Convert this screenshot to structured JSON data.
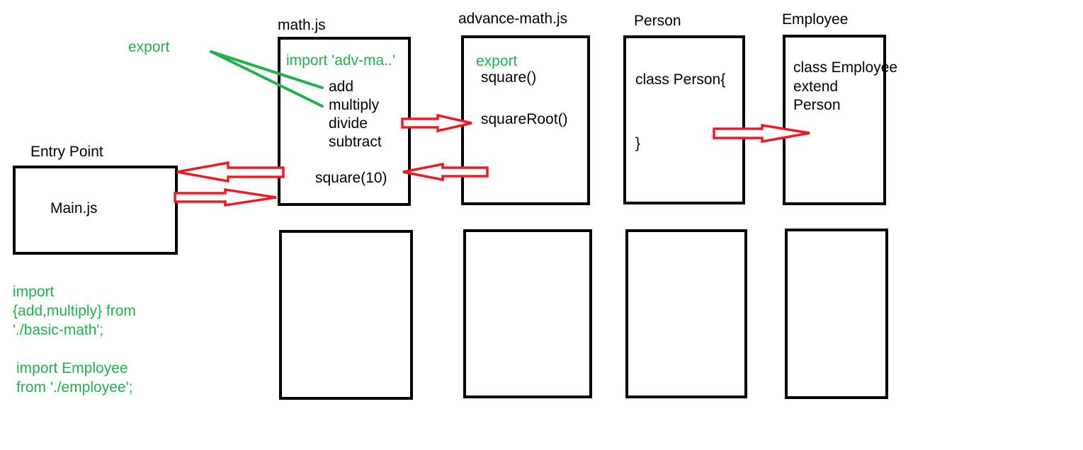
{
  "colors": {
    "text": "#000000",
    "box_border": "#000000",
    "annotation_green": "#22b14c",
    "arrow_red": "#ed1c24"
  },
  "entry": {
    "title": "Entry Point",
    "file": "Main.js",
    "note_lines": [
      "import",
      "{add,multiply} from",
      "'./basic-math';",
      "import Employee",
      "from './employee';"
    ]
  },
  "math": {
    "title": "math.js",
    "import_line": "import 'adv-ma..'",
    "functions": [
      "add",
      "multiply",
      "divide",
      "subtract"
    ],
    "call": "square(10)"
  },
  "export_label": "export",
  "advance": {
    "title": "advance-math.js",
    "export_label": "export",
    "functions": [
      "square()",
      "squareRoot()"
    ]
  },
  "person": {
    "title": "Person",
    "class_open": "class Person{",
    "class_close": "}"
  },
  "employee": {
    "title": "Employee",
    "lines": [
      "class Employee",
      "extend",
      "Person"
    ]
  }
}
